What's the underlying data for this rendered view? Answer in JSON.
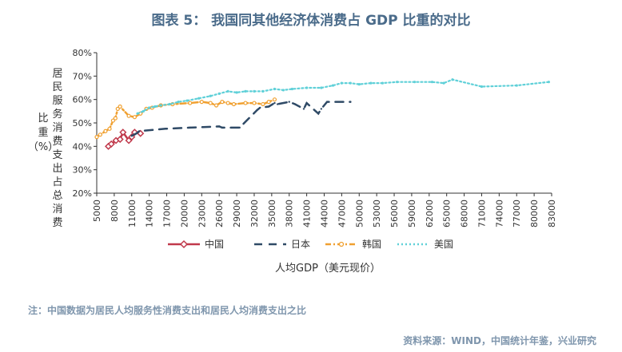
{
  "title": "图表 5：   我国同其他经济体消费占 GDP 比重的对比",
  "note": "注：中国数据为居民人均服务性消费支出和居民人均消费支出之比",
  "source": "资料来源：WIND，中国统计年鉴，兴业研究",
  "chart_data": {
    "type": "line",
    "title": "",
    "xlabel": "人均GDP（美元现价）",
    "ylabel_right": "居民服务消费支出占总消费",
    "ylabel_left": "比重（%）",
    "categories": [
      "5000",
      "8000",
      "11000",
      "14000",
      "17000",
      "20000",
      "23000",
      "26000",
      "29000",
      "32000",
      "35000",
      "38000",
      "41000",
      "44000",
      "47000",
      "50000",
      "53000",
      "56000",
      "59000",
      "62000",
      "65000",
      "68000",
      "71000",
      "74000",
      "77000",
      "80000",
      "83000"
    ],
    "y_ticks": [
      "20%",
      "30%",
      "40%",
      "50%",
      "60%",
      "70%",
      "80%"
    ],
    "ylim": [
      20,
      80
    ],
    "xlim": [
      5000,
      83000
    ],
    "grid": false,
    "legend_position": "bottom",
    "series": [
      {
        "name": "中国",
        "color": "#c0394b",
        "style": "solid-diamond",
        "points": [
          [
            7000,
            40
          ],
          [
            7500,
            41
          ],
          [
            8300,
            42.5
          ],
          [
            9000,
            43
          ],
          [
            9500,
            46
          ],
          [
            10500,
            42.5
          ],
          [
            11000,
            44
          ],
          [
            11500,
            46
          ],
          [
            12500,
            45.5
          ]
        ]
      },
      {
        "name": "日本",
        "color": "#2f4a66",
        "style": "long-dash",
        "points": [
          [
            11000,
            44.5
          ],
          [
            11800,
            45.5
          ],
          [
            12300,
            46.5
          ],
          [
            16800,
            47.5
          ],
          [
            21000,
            48
          ],
          [
            26000,
            48.5
          ],
          [
            26500,
            48
          ],
          [
            29500,
            48
          ],
          [
            32500,
            55.5
          ],
          [
            33000,
            56.5
          ],
          [
            34500,
            57
          ],
          [
            35500,
            58.5
          ],
          [
            36000,
            58
          ],
          [
            38000,
            59
          ],
          [
            39000,
            58
          ],
          [
            40500,
            56
          ],
          [
            41000,
            58.5
          ],
          [
            43000,
            54
          ],
          [
            43500,
            56
          ],
          [
            44500,
            59
          ],
          [
            48500,
            59
          ]
        ]
      },
      {
        "name": "韩国",
        "color": "#f0a030",
        "style": "dash-dot-circle",
        "points": [
          [
            5000,
            44
          ],
          [
            5600,
            45
          ],
          [
            6500,
            46.5
          ],
          [
            7200,
            47.5
          ],
          [
            7800,
            51
          ],
          [
            8200,
            52
          ],
          [
            8600,
            56
          ],
          [
            9000,
            57
          ],
          [
            10500,
            53
          ],
          [
            11500,
            52.5
          ],
          [
            12500,
            54
          ],
          [
            13500,
            56
          ],
          [
            14500,
            56.5
          ],
          [
            16000,
            57.5
          ],
          [
            18000,
            58
          ],
          [
            21000,
            58.5
          ],
          [
            23000,
            59
          ],
          [
            24500,
            58.5
          ],
          [
            25500,
            57.5
          ],
          [
            26500,
            59
          ],
          [
            27500,
            58.5
          ],
          [
            28500,
            58
          ],
          [
            30500,
            58.5
          ],
          [
            32000,
            58.5
          ],
          [
            33500,
            58
          ],
          [
            34500,
            59
          ],
          [
            35500,
            60
          ]
        ]
      },
      {
        "name": "美国",
        "color": "#5fd0d8",
        "style": "dotted",
        "points": [
          [
            12000,
            54
          ],
          [
            13000,
            55
          ],
          [
            14000,
            56.5
          ],
          [
            15000,
            57
          ],
          [
            16000,
            57.5
          ],
          [
            17500,
            58
          ],
          [
            19000,
            59
          ],
          [
            20500,
            59.5
          ],
          [
            22500,
            60.5
          ],
          [
            24500,
            61.5
          ],
          [
            26000,
            62.5
          ],
          [
            27500,
            63.5
          ],
          [
            29000,
            63
          ],
          [
            30500,
            63.5
          ],
          [
            32000,
            63.5
          ],
          [
            33500,
            63.5
          ],
          [
            35500,
            64.5
          ],
          [
            37000,
            64
          ],
          [
            38500,
            64.5
          ],
          [
            41000,
            65
          ],
          [
            43500,
            65
          ],
          [
            45500,
            66
          ],
          [
            47000,
            67
          ],
          [
            48500,
            67
          ],
          [
            50000,
            66.5
          ],
          [
            52000,
            67
          ],
          [
            54000,
            67
          ],
          [
            56500,
            67.5
          ],
          [
            59500,
            67.5
          ],
          [
            62500,
            67.5
          ],
          [
            64500,
            67
          ],
          [
            66000,
            68.5
          ],
          [
            71000,
            65.5
          ],
          [
            77000,
            66
          ],
          [
            82500,
            67.5
          ]
        ]
      }
    ]
  }
}
